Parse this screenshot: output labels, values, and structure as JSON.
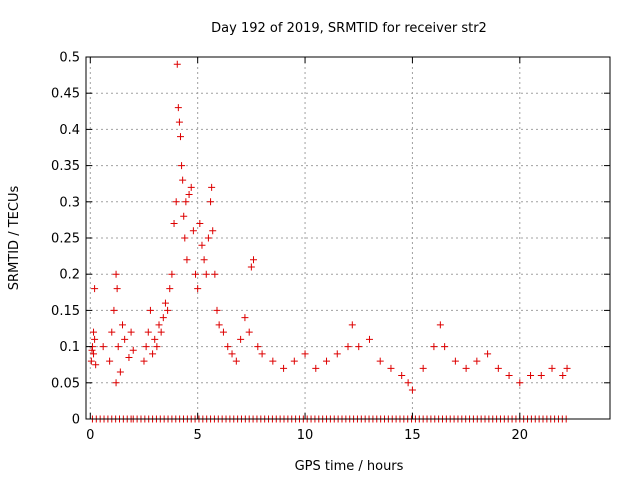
{
  "chart_data": {
    "type": "scatter",
    "title": "Day 192 of 2019, SRMTID for receiver str2",
    "xlabel": "GPS time / hours",
    "ylabel": "SRMTID / TECUs",
    "xlim": [
      -0.2,
      24.2
    ],
    "ylim": [
      0,
      0.5
    ],
    "x_ticks": [
      0,
      5,
      10,
      15,
      20
    ],
    "x_tick_labels": [
      "0",
      "5",
      "10",
      "15",
      "20"
    ],
    "y_ticks": [
      0,
      0.05,
      0.1,
      0.15,
      0.2,
      0.25,
      0.3,
      0.35,
      0.4,
      0.45,
      0.5
    ],
    "y_tick_labels": [
      "0",
      "0.05",
      "0.1",
      "0.15",
      "0.2",
      "0.25",
      "0.3",
      "0.35",
      "0.4",
      "0.45",
      "0.5"
    ],
    "grid": true,
    "marker": "+",
    "marker_color": "#dd0000",
    "series": [
      {
        "name": "SRMTID",
        "points": [
          [
            0.05,
            0.08
          ],
          [
            0.1,
            0.1
          ],
          [
            0.15,
            0.09
          ],
          [
            0.2,
            0.11
          ],
          [
            0.25,
            0.075
          ],
          [
            0.15,
            0.12
          ],
          [
            0.2,
            0.18
          ],
          [
            0.08,
            0.095
          ],
          [
            0.6,
            0.1
          ],
          [
            0.9,
            0.08
          ],
          [
            1.0,
            0.12
          ],
          [
            1.1,
            0.15
          ],
          [
            1.2,
            0.2
          ],
          [
            1.25,
            0.18
          ],
          [
            1.3,
            0.1
          ],
          [
            1.2,
            0.05
          ],
          [
            1.4,
            0.065
          ],
          [
            1.5,
            0.13
          ],
          [
            1.6,
            0.11
          ],
          [
            1.8,
            0.085
          ],
          [
            1.9,
            0.12
          ],
          [
            2.0,
            0.095
          ],
          [
            2.5,
            0.08
          ],
          [
            2.6,
            0.1
          ],
          [
            2.7,
            0.12
          ],
          [
            2.8,
            0.15
          ],
          [
            2.9,
            0.09
          ],
          [
            3.0,
            0.11
          ],
          [
            3.1,
            0.1
          ],
          [
            3.2,
            0.13
          ],
          [
            3.3,
            0.12
          ],
          [
            3.4,
            0.14
          ],
          [
            3.5,
            0.16
          ],
          [
            3.6,
            0.15
          ],
          [
            3.7,
            0.18
          ],
          [
            3.8,
            0.2
          ],
          [
            3.9,
            0.27
          ],
          [
            4.0,
            0.3
          ],
          [
            4.05,
            0.49
          ],
          [
            4.1,
            0.43
          ],
          [
            4.15,
            0.41
          ],
          [
            4.2,
            0.39
          ],
          [
            4.25,
            0.35
          ],
          [
            4.3,
            0.33
          ],
          [
            4.35,
            0.28
          ],
          [
            4.4,
            0.25
          ],
          [
            4.45,
            0.3
          ],
          [
            4.5,
            0.22
          ],
          [
            4.6,
            0.31
          ],
          [
            4.7,
            0.32
          ],
          [
            4.8,
            0.26
          ],
          [
            4.9,
            0.2
          ],
          [
            5.0,
            0.18
          ],
          [
            5.1,
            0.27
          ],
          [
            5.2,
            0.24
          ],
          [
            5.3,
            0.22
          ],
          [
            5.4,
            0.2
          ],
          [
            5.5,
            0.25
          ],
          [
            5.6,
            0.3
          ],
          [
            5.65,
            0.32
          ],
          [
            5.7,
            0.26
          ],
          [
            5.8,
            0.2
          ],
          [
            5.9,
            0.15
          ],
          [
            6.0,
            0.13
          ],
          [
            6.2,
            0.12
          ],
          [
            6.4,
            0.1
          ],
          [
            6.6,
            0.09
          ],
          [
            6.8,
            0.08
          ],
          [
            7.0,
            0.11
          ],
          [
            7.2,
            0.14
          ],
          [
            7.4,
            0.12
          ],
          [
            7.6,
            0.22
          ],
          [
            7.5,
            0.21
          ],
          [
            7.8,
            0.1
          ],
          [
            8.0,
            0.09
          ],
          [
            8.5,
            0.08
          ],
          [
            9.0,
            0.07
          ],
          [
            9.5,
            0.08
          ],
          [
            10.0,
            0.09
          ],
          [
            10.5,
            0.07
          ],
          [
            11.0,
            0.08
          ],
          [
            11.5,
            0.09
          ],
          [
            12.0,
            0.1
          ],
          [
            12.2,
            0.13
          ],
          [
            12.5,
            0.1
          ],
          [
            13.0,
            0.11
          ],
          [
            13.5,
            0.08
          ],
          [
            14.0,
            0.07
          ],
          [
            14.5,
            0.06
          ],
          [
            14.8,
            0.05
          ],
          [
            15.0,
            0.04
          ],
          [
            15.5,
            0.07
          ],
          [
            16.0,
            0.1
          ],
          [
            16.3,
            0.13
          ],
          [
            16.5,
            0.1
          ],
          [
            17.0,
            0.08
          ],
          [
            17.5,
            0.07
          ],
          [
            18.0,
            0.08
          ],
          [
            18.5,
            0.09
          ],
          [
            19.0,
            0.07
          ],
          [
            19.5,
            0.06
          ],
          [
            20.0,
            0.05
          ],
          [
            20.5,
            0.06
          ],
          [
            21.0,
            0.06
          ],
          [
            21.5,
            0.07
          ],
          [
            22.0,
            0.06
          ],
          [
            22.2,
            0.07
          ]
        ]
      }
    ],
    "zero_band_x_ranges": [
      [
        0.1,
        1.9
      ],
      [
        2.0,
        22.3
      ]
    ]
  }
}
